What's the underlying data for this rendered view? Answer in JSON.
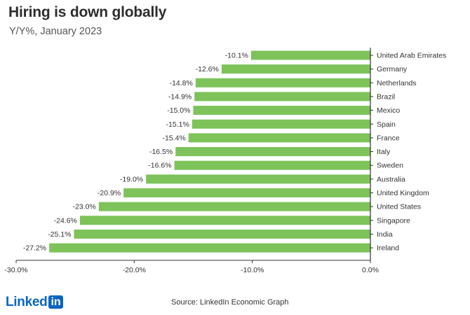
{
  "header": {
    "title": "Hiring is down globally",
    "subtitle": "Y/Y%, January 2023"
  },
  "footer": {
    "logo_word": "Linked",
    "logo_box": "in",
    "source": "Source: LinkedIn Economic Graph"
  },
  "colors": {
    "bar": "#7dc35a",
    "axis": "#333333",
    "text": "#333333"
  },
  "chart_data": {
    "type": "bar",
    "orientation": "horizontal",
    "categories": [
      "United Arab Emirates",
      "Germany",
      "Netherlands",
      "Brazil",
      "Mexico",
      "Spain",
      "France",
      "Italy",
      "Sweden",
      "Australia",
      "United Kingdom",
      "United States",
      "Singapore",
      "India",
      "Ireland"
    ],
    "values": [
      -10.1,
      -12.6,
      -14.8,
      -14.9,
      -15.0,
      -15.1,
      -15.4,
      -16.5,
      -16.6,
      -19.0,
      -20.9,
      -23.0,
      -24.6,
      -25.1,
      -27.2
    ],
    "value_labels": [
      "-10.1%",
      "-12.6%",
      "-14.8%",
      "-14.9%",
      "-15.0%",
      "-15.1%",
      "-15.4%",
      "-16.5%",
      "-16.6%",
      "-19.0%",
      "-20.9%",
      "-23.0%",
      "-24.6%",
      "-25.1%",
      "-27.2%"
    ],
    "xlim": [
      -30,
      0
    ],
    "xticks": [
      -30,
      -20,
      -10,
      0
    ],
    "xtick_labels": [
      "-30.0%",
      "-20.0%",
      "-10.0%",
      "0.0%"
    ],
    "grid": false,
    "legend": "none",
    "title": "Hiring is down globally",
    "subtitle": "Y/Y%, January 2023",
    "xlabel": "",
    "ylabel": ""
  }
}
